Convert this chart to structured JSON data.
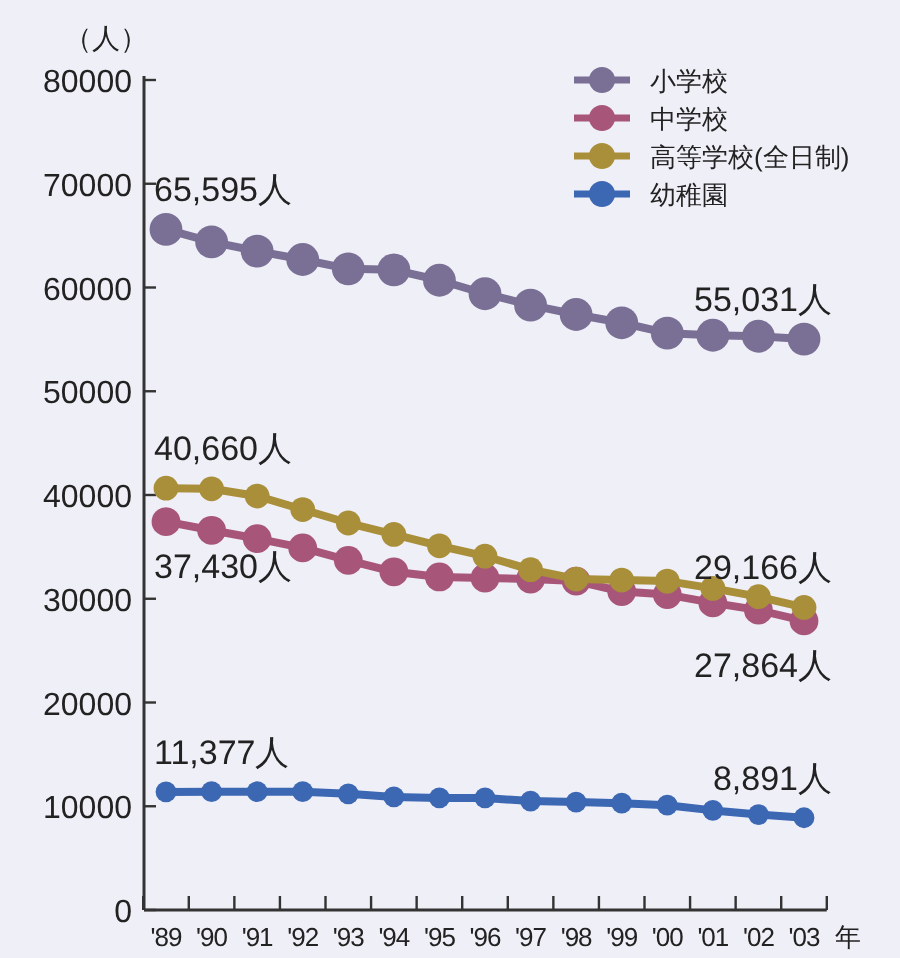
{
  "chart_data": {
    "type": "line",
    "ylabel": "（人）",
    "xlabel": "年",
    "categories": [
      "'89",
      "'90",
      "'91",
      "'92",
      "'93",
      "'94",
      "'95",
      "'96",
      "'97",
      "'98",
      "'99",
      "'00",
      "'01",
      "'02",
      "'03"
    ],
    "ylim": [
      0,
      80000
    ],
    "yticks": [
      0,
      10000,
      20000,
      30000,
      40000,
      50000,
      60000,
      70000,
      80000
    ],
    "legend": "top right",
    "marker": "circle",
    "line_style": "solid",
    "series": [
      {
        "name": "小学校",
        "color": "#7a6f94",
        "values": [
          65595,
          64400,
          63500,
          62700,
          61800,
          61700,
          60700,
          59400,
          58300,
          57400,
          56600,
          55600,
          55400,
          55300,
          55031
        ]
      },
      {
        "name": "中学校",
        "color": "#a8557a",
        "values": [
          37430,
          36600,
          35800,
          34900,
          33700,
          32600,
          32100,
          32000,
          31900,
          31700,
          30700,
          30400,
          29600,
          28900,
          27864
        ]
      },
      {
        "name": "高等学校(全日制)",
        "color": "#a98f3a",
        "values": [
          40660,
          40600,
          39900,
          38600,
          37300,
          36200,
          35100,
          34100,
          32800,
          31900,
          31800,
          31700,
          31000,
          30200,
          29166
        ]
      },
      {
        "name": "幼稚園",
        "color": "#3b67b3",
        "values": [
          11377,
          11400,
          11400,
          11400,
          11200,
          10900,
          10800,
          10800,
          10500,
          10400,
          10300,
          10100,
          9600,
          9200,
          8891
        ]
      }
    ],
    "annotations": [
      {
        "text": "65,595人",
        "x": "'89",
        "y": 65595
      },
      {
        "text": "55,031人",
        "x": "'03",
        "y": 55031
      },
      {
        "text": "40,660人",
        "x": "'89",
        "y": 40660
      },
      {
        "text": "37,430人",
        "x": "'89",
        "y": 37430
      },
      {
        "text": "29,166人",
        "x": "'03",
        "y": 29166
      },
      {
        "text": "27,864人",
        "x": "'03",
        "y": 27864
      },
      {
        "text": "11,377人",
        "x": "'89",
        "y": 11377
      },
      {
        "text": "8,891人",
        "x": "'03",
        "y": 8891
      }
    ]
  }
}
